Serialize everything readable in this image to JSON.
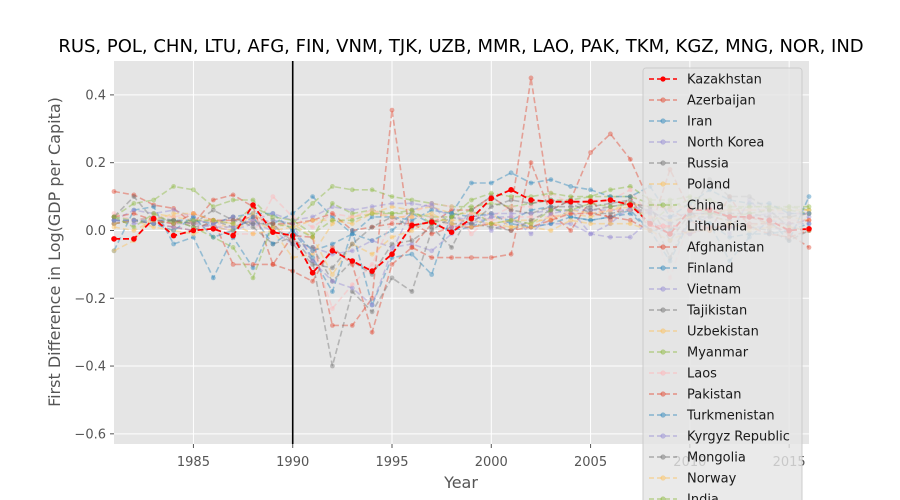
{
  "chart_data": {
    "type": "line",
    "title": "RUS, POL, CHN, LTU, AFG, FIN, VNM, TJK, UZB, MMR, LAO, PAK, TKM, KGZ, MNG, NOR, IND",
    "xlabel": "Year",
    "ylabel": "First Difference in Log(GDP per Capita)",
    "xlim": [
      1981,
      2016
    ],
    "ylim": [
      -0.63,
      0.5
    ],
    "xticks": [
      1985,
      1990,
      1995,
      2000,
      2005,
      2010,
      2015
    ],
    "yticks": [
      -0.6,
      -0.4,
      -0.2,
      0.0,
      0.2,
      0.4
    ],
    "xtick_labels": [
      "1985",
      "1990",
      "1995",
      "2000",
      "2005",
      "2010",
      "2015"
    ],
    "ytick_labels": [
      "−0.6",
      "−0.4",
      "−0.2",
      "0.0",
      "0.2",
      "0.4"
    ],
    "vline_x": 1990,
    "grid": true,
    "legend_position": "upper right",
    "x": [
      1981,
      1982,
      1983,
      1984,
      1985,
      1986,
      1987,
      1988,
      1989,
      1990,
      1991,
      1992,
      1993,
      1994,
      1995,
      1996,
      1997,
      1998,
      1999,
      2000,
      2001,
      2002,
      2003,
      2004,
      2005,
      2006,
      2007,
      2008,
      2009,
      2010,
      2011,
      2012,
      2013,
      2014,
      2015,
      2016
    ],
    "series": [
      {
        "name": "Kazakhstan",
        "color": "#ff0000",
        "highlight": true,
        "values": [
          -0.025,
          -0.025,
          0.035,
          -0.015,
          0.0,
          0.005,
          -0.015,
          0.075,
          -0.005,
          -0.015,
          -0.125,
          -0.06,
          -0.09,
          -0.12,
          -0.07,
          0.015,
          0.025,
          -0.005,
          0.035,
          0.095,
          0.12,
          0.09,
          0.085,
          0.085,
          0.085,
          0.09,
          0.075,
          0.02,
          -0.01,
          0.06,
          0.06,
          0.04,
          0.04,
          0.03,
          0.0,
          0.005
        ]
      },
      {
        "name": "Azerbaijan",
        "color": "#e24a33",
        "values": [
          0.115,
          0.105,
          0.075,
          0.065,
          0.02,
          0.09,
          0.105,
          0.07,
          -0.1,
          -0.015,
          -0.02,
          -0.28,
          -0.28,
          -0.2,
          0.355,
          -0.05,
          0.02,
          0.06,
          0.06,
          0.1,
          0.06,
          0.45,
          0.06,
          0.09,
          0.23,
          0.285,
          0.21,
          0.08,
          0.06,
          0.03,
          0.0,
          0.02,
          0.04,
          0.02,
          -0.01,
          -0.05
        ]
      },
      {
        "name": "Iran",
        "color": "#348abd",
        "values": [
          -0.06,
          0.06,
          0.07,
          -0.04,
          -0.02,
          -0.14,
          -0.02,
          -0.11,
          0.02,
          0.05,
          0.1,
          0.04,
          -0.01,
          -0.03,
          0.0,
          0.05,
          0.02,
          0.0,
          0.01,
          0.04,
          0.03,
          0.06,
          0.07,
          0.04,
          0.03,
          0.04,
          0.06,
          0.0,
          0.0,
          0.05,
          0.02,
          -0.09,
          -0.02,
          0.03,
          -0.03,
          0.1
        ]
      },
      {
        "name": "North Korea",
        "color": "#988ed5",
        "values": [
          0.03,
          0.02,
          0.03,
          0.02,
          0.02,
          0.01,
          0.0,
          0.02,
          0.0,
          -0.04,
          -0.05,
          -0.07,
          -0.06,
          -0.03,
          -0.05,
          -0.04,
          -0.06,
          -0.01,
          0.06,
          0.0,
          0.03,
          0.01,
          0.02,
          0.02,
          -0.01,
          -0.02,
          -0.02,
          0.03,
          -0.01,
          -0.01,
          0.01,
          0.01,
          0.01,
          0.01,
          0.0,
          0.04
        ]
      },
      {
        "name": "Russia",
        "color": "#777777",
        "values": [
          0.02,
          0.03,
          0.04,
          0.03,
          0.02,
          0.03,
          0.01,
          0.03,
          0.01,
          -0.03,
          -0.05,
          -0.15,
          -0.09,
          -0.13,
          -0.04,
          -0.03,
          0.01,
          -0.05,
          0.06,
          0.1,
          0.06,
          0.05,
          0.07,
          0.07,
          0.07,
          0.08,
          0.09,
          0.05,
          -0.08,
          0.04,
          0.04,
          0.03,
          0.01,
          0.0,
          -0.03,
          0.0
        ]
      },
      {
        "name": "Poland",
        "color": "#fbc15e",
        "values": [
          -0.06,
          -0.03,
          0.05,
          0.04,
          0.03,
          0.03,
          0.0,
          0.03,
          0.0,
          -0.08,
          -0.07,
          0.02,
          0.04,
          0.05,
          0.07,
          0.06,
          0.07,
          0.05,
          0.05,
          0.05,
          0.01,
          0.02,
          0.04,
          0.05,
          0.04,
          0.06,
          0.07,
          0.04,
          0.03,
          0.04,
          0.05,
          0.02,
          0.01,
          0.03,
          0.04,
          0.03
        ]
      },
      {
        "name": "China",
        "color": "#8eba42",
        "values": [
          0.04,
          0.08,
          0.09,
          0.13,
          0.12,
          0.07,
          0.09,
          0.09,
          0.03,
          0.02,
          0.08,
          0.13,
          0.12,
          0.12,
          0.1,
          0.09,
          0.08,
          0.07,
          0.07,
          0.08,
          0.07,
          0.08,
          0.09,
          0.09,
          0.1,
          0.12,
          0.13,
          0.09,
          0.09,
          0.1,
          0.09,
          0.07,
          0.07,
          0.07,
          0.07,
          0.06
        ]
      },
      {
        "name": "Lithuania",
        "color": "#ffb5b8",
        "values": [
          0.02,
          0.03,
          0.03,
          0.02,
          0.02,
          0.03,
          0.02,
          0.03,
          0.02,
          -0.03,
          -0.06,
          -0.23,
          -0.16,
          -0.1,
          0.03,
          0.05,
          0.08,
          0.07,
          -0.01,
          0.04,
          0.07,
          0.07,
          0.11,
          0.08,
          0.09,
          0.09,
          0.12,
          0.04,
          -0.14,
          0.03,
          0.07,
          0.05,
          0.04,
          0.04,
          0.03,
          0.03
        ]
      },
      {
        "name": "Afghanistan",
        "color": "#e24a33",
        "values": [
          0.02,
          0.03,
          0.02,
          0.01,
          0.0,
          0.03,
          -0.1,
          -0.1,
          -0.1,
          -0.12,
          -0.15,
          -0.05,
          -0.1,
          -0.3,
          -0.1,
          -0.05,
          -0.08,
          -0.08,
          -0.08,
          -0.08,
          -0.07,
          0.2,
          0.05,
          0.0,
          0.09,
          0.03,
          0.1,
          0.0,
          0.18,
          0.06,
          0.0,
          0.1,
          0.01,
          -0.01,
          -0.02,
          0.0
        ]
      },
      {
        "name": "Finland",
        "color": "#348abd",
        "values": [
          0.02,
          0.03,
          0.03,
          0.03,
          0.03,
          0.02,
          0.04,
          0.05,
          0.05,
          0.0,
          -0.06,
          -0.04,
          -0.01,
          0.04,
          0.04,
          0.03,
          0.06,
          0.05,
          0.04,
          0.05,
          0.02,
          0.01,
          0.02,
          0.04,
          0.03,
          0.04,
          0.05,
          0.0,
          -0.09,
          0.03,
          0.02,
          -0.02,
          -0.01,
          -0.01,
          0.0,
          0.02
        ]
      },
      {
        "name": "Vietnam",
        "color": "#988ed5",
        "values": [
          0.03,
          0.06,
          0.05,
          0.06,
          0.04,
          0.01,
          0.01,
          0.03,
          0.05,
          0.03,
          0.04,
          0.07,
          0.06,
          0.07,
          0.08,
          0.08,
          0.07,
          0.04,
          0.03,
          0.05,
          0.05,
          0.05,
          0.06,
          0.06,
          0.06,
          0.06,
          0.06,
          0.05,
          0.04,
          0.05,
          0.05,
          0.04,
          0.04,
          0.05,
          0.05,
          0.05
        ]
      },
      {
        "name": "Tajikistan",
        "color": "#777777",
        "values": [
          0.03,
          0.03,
          0.02,
          0.03,
          0.01,
          0.02,
          0.04,
          0.01,
          -0.04,
          -0.02,
          -0.09,
          -0.4,
          -0.18,
          -0.24,
          -0.14,
          -0.18,
          0.0,
          0.04,
          0.02,
          0.07,
          0.09,
          0.08,
          0.09,
          0.08,
          0.05,
          0.05,
          0.06,
          0.06,
          0.02,
          0.05,
          0.05,
          0.05,
          0.05,
          0.04,
          0.04,
          0.05
        ]
      },
      {
        "name": "Uzbekistan",
        "color": "#fbc15e",
        "values": [
          0.02,
          0.03,
          0.01,
          0.0,
          -0.01,
          0.01,
          0.0,
          0.05,
          0.01,
          0.02,
          -0.02,
          -0.13,
          -0.04,
          -0.07,
          -0.02,
          0.0,
          0.03,
          0.03,
          0.03,
          0.02,
          0.03,
          0.03,
          0.03,
          0.06,
          0.05,
          0.06,
          0.08,
          0.07,
          0.07,
          0.07,
          0.06,
          0.06,
          0.06,
          0.06,
          0.06,
          0.06
        ]
      },
      {
        "name": "Myanmar",
        "color": "#8eba42",
        "values": [
          0.04,
          0.03,
          0.02,
          0.03,
          0.01,
          -0.02,
          -0.05,
          -0.14,
          0.02,
          0.01,
          -0.02,
          0.08,
          0.05,
          0.06,
          0.05,
          0.05,
          0.04,
          0.04,
          0.09,
          0.11,
          0.1,
          0.1,
          0.11,
          0.1,
          0.1,
          0.1,
          0.1,
          0.08,
          0.08,
          0.07,
          0.05,
          0.06,
          0.07,
          0.07,
          0.06,
          0.05
        ]
      },
      {
        "name": "Laos",
        "color": "#ffb5b8",
        "values": [
          0.05,
          0.03,
          0.04,
          0.04,
          0.05,
          0.03,
          -0.01,
          -0.01,
          0.1,
          0.04,
          0.01,
          0.05,
          0.04,
          0.06,
          0.04,
          0.04,
          0.04,
          0.01,
          0.05,
          0.03,
          0.04,
          0.04,
          0.04,
          0.05,
          0.05,
          0.06,
          0.06,
          0.06,
          0.06,
          0.07,
          0.06,
          0.06,
          0.06,
          0.06,
          0.05,
          0.05
        ]
      },
      {
        "name": "Pakistan",
        "color": "#e24a33",
        "values": [
          0.04,
          0.05,
          0.03,
          0.02,
          0.05,
          0.03,
          0.03,
          0.04,
          0.02,
          0.02,
          0.03,
          0.05,
          0.0,
          0.01,
          0.02,
          0.02,
          -0.01,
          0.01,
          0.01,
          0.02,
          0.0,
          0.01,
          0.03,
          0.05,
          0.05,
          0.04,
          0.03,
          0.0,
          0.01,
          -0.01,
          0.01,
          0.01,
          0.02,
          0.02,
          0.02,
          0.03
        ]
      },
      {
        "name": "Turkmenistan",
        "color": "#348abd",
        "values": [
          0.03,
          0.03,
          0.02,
          0.0,
          0.04,
          -0.02,
          0.0,
          0.04,
          -0.04,
          0.0,
          -0.08,
          -0.18,
          0.0,
          -0.22,
          -0.08,
          -0.07,
          -0.13,
          0.05,
          0.14,
          0.14,
          0.17,
          0.14,
          0.15,
          0.13,
          0.12,
          0.1,
          0.1,
          0.13,
          0.04,
          0.08,
          0.12,
          0.09,
          0.08,
          0.08,
          0.05,
          0.05
        ]
      },
      {
        "name": "Kyrgyz Republic",
        "color": "#988ed5",
        "values": [
          0.03,
          0.03,
          0.02,
          0.01,
          0.0,
          0.02,
          0.04,
          0.02,
          0.03,
          0.02,
          -0.09,
          -0.15,
          -0.17,
          -0.22,
          -0.06,
          0.06,
          0.08,
          0.01,
          0.02,
          0.04,
          0.04,
          -0.01,
          0.05,
          0.06,
          -0.01,
          0.02,
          0.07,
          0.06,
          0.02,
          -0.01,
          0.05,
          -0.01,
          0.09,
          0.03,
          0.02,
          0.02
        ]
      },
      {
        "name": "Mongolia",
        "color": "#777777",
        "values": [
          0.04,
          0.1,
          0.03,
          0.03,
          0.02,
          0.06,
          0.03,
          0.02,
          0.02,
          -0.04,
          -0.1,
          -0.11,
          -0.04,
          0.01,
          0.04,
          0.01,
          0.03,
          0.02,
          0.02,
          0.01,
          0.0,
          0.03,
          0.06,
          0.09,
          0.06,
          0.07,
          0.08,
          0.07,
          -0.03,
          0.05,
          0.15,
          0.1,
          0.1,
          0.06,
          0.01,
          0.0
        ]
      },
      {
        "name": "Norway",
        "color": "#fbc15e",
        "values": [
          0.01,
          0.0,
          0.03,
          0.05,
          0.05,
          0.03,
          0.02,
          -0.01,
          0.0,
          0.01,
          0.03,
          0.03,
          0.02,
          0.05,
          0.04,
          0.04,
          0.05,
          0.02,
          0.01,
          0.02,
          0.01,
          0.01,
          0.0,
          0.03,
          0.02,
          0.02,
          0.02,
          0.0,
          -0.03,
          0.0,
          0.0,
          0.02,
          0.0,
          0.01,
          0.01,
          0.0
        ]
      },
      {
        "name": "India",
        "color": "#8eba42",
        "values": [
          0.04,
          0.01,
          0.05,
          0.02,
          0.03,
          0.03,
          0.02,
          0.07,
          0.04,
          0.03,
          -0.01,
          0.03,
          0.03,
          0.05,
          0.05,
          0.06,
          0.02,
          0.04,
          0.06,
          0.02,
          0.03,
          0.02,
          0.06,
          0.06,
          0.08,
          0.07,
          0.08,
          0.02,
          0.07,
          0.09,
          0.05,
          0.04,
          0.05,
          0.06,
          0.07,
          0.07
        ]
      }
    ]
  }
}
